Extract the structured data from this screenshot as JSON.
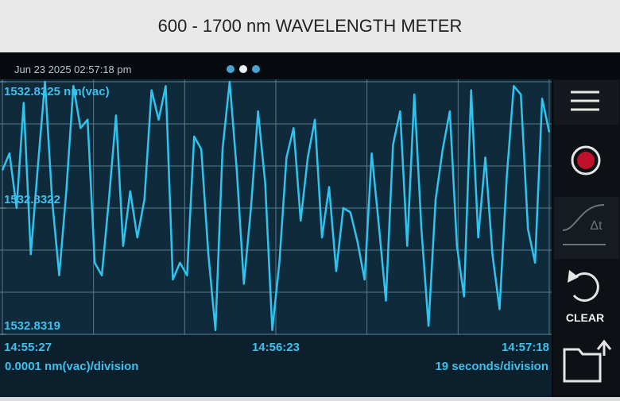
{
  "header": {
    "title": "600 - 1700 nm WAVELENGTH METER"
  },
  "status": {
    "datetime": "Jun 23 2025 02:57:18 pm"
  },
  "sidebar": {
    "delta_t": "Δt",
    "clear": "CLEAR"
  },
  "chart_data": {
    "type": "line",
    "color": "#2ec4f0",
    "ylim": [
      1532.8319,
      1532.8325
    ],
    "yticks": [
      {
        "value": 1532.8325,
        "label": "1532.8325 nm(vac)"
      },
      1532.8322,
      1532.8319
    ],
    "x_labels": [
      "14:55:27",
      "14:56:23",
      "14:57:18"
    ],
    "y_scale": "0.0001 nm(vac)/division",
    "x_scale": "19 seconds/division",
    "grid": true,
    "values": [
      1532.83229,
      1532.83233,
      1532.8322,
      1532.83245,
      1532.83209,
      1532.8323,
      1532.8325,
      1532.83222,
      1532.83204,
      1532.83224,
      1532.83249,
      1532.83239,
      1532.83241,
      1532.83207,
      1532.83204,
      1532.83222,
      1532.83242,
      1532.83211,
      1532.83224,
      1532.83213,
      1532.83222,
      1532.83248,
      1532.83241,
      1532.83249,
      1532.83203,
      1532.83207,
      1532.83204,
      1532.83237,
      1532.83234,
      1532.83209,
      1532.83191,
      1532.83234,
      1532.8325,
      1532.83229,
      1532.83202,
      1532.8322,
      1532.83243,
      1532.83226,
      1532.83191,
      1532.83207,
      1532.83232,
      1532.83239,
      1532.83217,
      1532.83232,
      1532.83241,
      1532.83213,
      1532.83225,
      1532.83205,
      1532.8322,
      1532.83219,
      1532.83212,
      1532.83203,
      1532.83233,
      1532.83216,
      1532.83198,
      1532.83235,
      1532.83243,
      1532.83211,
      1532.83247,
      1532.83215,
      1532.83192,
      1532.83222,
      1532.83234,
      1532.83243,
      1532.83211,
      1532.83199,
      1532.83248,
      1532.83213,
      1532.83232,
      1532.83209,
      1532.83196,
      1532.83227,
      1532.83249,
      1532.83247,
      1532.83215,
      1532.83207,
      1532.83246,
      1532.83238
    ]
  }
}
